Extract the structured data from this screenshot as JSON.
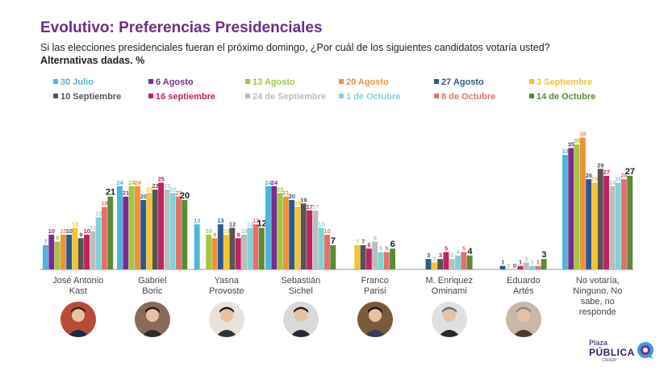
{
  "header": {
    "title": "Evolutivo: Preferencias Presidenciales",
    "subtitle": "Si las elecciones presidenciales fueran el próximo domingo, ¿Por cuál de los siguientes candidatos votaría usted?",
    "subtitle_bold": "Alternativas dadas. %"
  },
  "brand": {
    "top": "Plaza",
    "main": "PÚBLICA",
    "sub": "CADEM"
  },
  "icons": {
    "candidate_photo": "person-portrait-icon",
    "brand_logo": "speech-bubble-icon"
  },
  "chart_data": {
    "type": "bar",
    "categories": [
      "José Antonio Kast",
      "Gabriel Boric",
      "Yasna Provoste",
      "Sebastián Sichel",
      "Franco Parisi",
      "M. Enriquez Ominami",
      "Eduardo Artés",
      "No votaría, Ninguno, No sabe, no responde"
    ],
    "category_lines": [
      [
        "José Antonio",
        "Kast"
      ],
      [
        "Gabriel",
        "Boric"
      ],
      [
        "Yasna",
        "Provoste"
      ],
      [
        "Sebastián",
        "Sichel"
      ],
      [
        "Franco",
        "Parisi"
      ],
      [
        "M. Enriquez",
        "Ominami"
      ],
      [
        "Eduardo",
        "Artés"
      ],
      [
        "No votaría,",
        "Ninguno, No",
        "sabe, no",
        "responde"
      ]
    ],
    "ylim": [
      0,
      40
    ],
    "xlabel": "",
    "ylabel": "",
    "series": [
      {
        "name": "30 Julio",
        "color": "#4fb3d9",
        "values": [
          7,
          24,
          13,
          24,
          null,
          null,
          null,
          33
        ]
      },
      {
        "name": "6 Agosto",
        "color": "#7b2d8e",
        "values": [
          10,
          21,
          null,
          24,
          null,
          null,
          null,
          35
        ]
      },
      {
        "name": "13 Agosto",
        "color": "#a3c644",
        "values": [
          8,
          24,
          10,
          22,
          null,
          null,
          null,
          36
        ]
      },
      {
        "name": "20 Agosto",
        "color": "#f0913a",
        "values": [
          10,
          24,
          9,
          21,
          null,
          null,
          null,
          38
        ]
      },
      {
        "name": "27 Agosto",
        "color": "#2c5a8c",
        "values": [
          10,
          20,
          13,
          20,
          null,
          3,
          1,
          26
        ]
      },
      {
        "name": "3 Septiembre",
        "color": "#f4c430",
        "values": [
          12,
          22,
          10,
          18,
          7,
          2,
          0,
          25
        ]
      },
      {
        "name": "10 Septiembre",
        "color": "#555555",
        "values": [
          9,
          23,
          12,
          19,
          7,
          3,
          0,
          29
        ]
      },
      {
        "name": "16 septiembre",
        "color": "#c0235f",
        "values": [
          10,
          25,
          9,
          17,
          6,
          5,
          1,
          27
        ]
      },
      {
        "name": "24 de Septiembre",
        "color": "#bdbdbd",
        "values": [
          11,
          23,
          10,
          17,
          8,
          3,
          2,
          24
        ]
      },
      {
        "name": "1 de Octubre",
        "color": "#7fd3d6",
        "values": [
          15,
          22,
          12,
          12,
          5,
          4,
          1,
          25
        ]
      },
      {
        "name": "8 de Octubre",
        "color": "#e4706a",
        "values": [
          18,
          21,
          13,
          10,
          5,
          5,
          1,
          26
        ]
      },
      {
        "name": "14 de Octubre",
        "color": "#5a8a3a",
        "values": [
          21,
          20,
          12,
          7,
          6,
          4,
          3,
          27
        ]
      }
    ],
    "highlight_labels": [
      21,
      20,
      12,
      7,
      6,
      4,
      3,
      27
    ]
  }
}
